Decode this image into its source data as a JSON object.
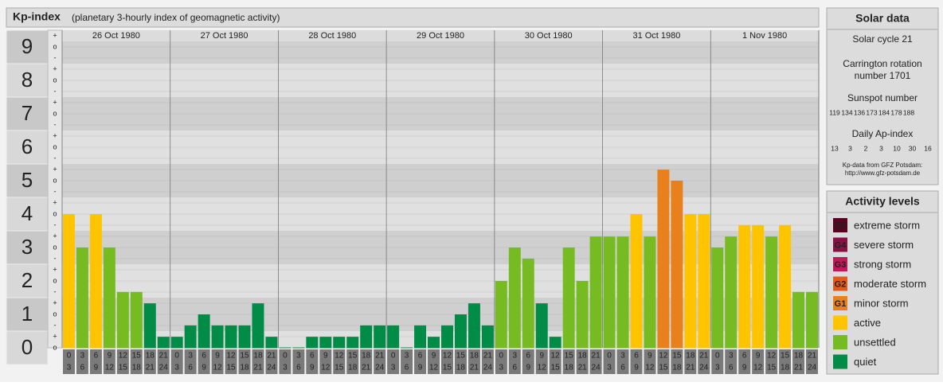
{
  "chart_data": {
    "type": "bar",
    "title": "Kp-index",
    "subtitle": "(planetary 3-hourly index of geomagnetic activity)",
    "ylim": [
      0,
      9.5
    ],
    "yticks": [
      0,
      1,
      2,
      3,
      4,
      5,
      6,
      7,
      8,
      9
    ],
    "minor_labels": [
      "o",
      "+",
      "-"
    ],
    "hour_labels": [
      [
        "0",
        "3"
      ],
      [
        "3",
        "6"
      ],
      [
        "6",
        "9"
      ],
      [
        "9",
        "12"
      ],
      [
        "12",
        "15"
      ],
      [
        "15",
        "18"
      ],
      [
        "18",
        "21"
      ],
      [
        "21",
        "24"
      ]
    ],
    "days": [
      {
        "date": "26 Oct 1980",
        "values": [
          4,
          3,
          4,
          3,
          1.67,
          1.67,
          1.33,
          0.33
        ],
        "colors": [
          "#ffc400",
          "#77bb22",
          "#ffc400",
          "#77bb22",
          "#77bb22",
          "#77bb22",
          "#008c46",
          "#008c46"
        ]
      },
      {
        "date": "27 Oct 1980",
        "values": [
          0.33,
          0.67,
          1,
          0.67,
          0.67,
          0.67,
          1.33,
          0.33
        ],
        "colors": [
          "#008c46",
          "#008c46",
          "#008c46",
          "#008c46",
          "#008c46",
          "#008c46",
          "#008c46",
          "#008c46"
        ]
      },
      {
        "date": "28 Oct 1980",
        "values": [
          0,
          0,
          0.33,
          0.33,
          0.33,
          0.33,
          0.67,
          0.67
        ],
        "colors": [
          "#008c46",
          "#008c46",
          "#008c46",
          "#008c46",
          "#008c46",
          "#008c46",
          "#008c46",
          "#008c46"
        ]
      },
      {
        "date": "29 Oct 1980",
        "values": [
          0.67,
          0,
          0.67,
          0.33,
          0.67,
          1,
          1.33,
          0.67
        ],
        "colors": [
          "#008c46",
          "#008c46",
          "#008c46",
          "#008c46",
          "#008c46",
          "#008c46",
          "#008c46",
          "#008c46"
        ]
      },
      {
        "date": "30 Oct 1980",
        "values": [
          2,
          3,
          2.67,
          1.33,
          0.33,
          3,
          2,
          3.33
        ],
        "colors": [
          "#77bb22",
          "#77bb22",
          "#77bb22",
          "#008c46",
          "#008c46",
          "#77bb22",
          "#77bb22",
          "#77bb22"
        ]
      },
      {
        "date": "31 Oct 1980",
        "values": [
          3.33,
          3.33,
          4,
          3.33,
          5.33,
          5,
          4,
          4
        ],
        "colors": [
          "#77bb22",
          "#77bb22",
          "#ffc400",
          "#77bb22",
          "#e8801c",
          "#e8801c",
          "#ffc400",
          "#ffc400"
        ]
      },
      {
        "date": "1 Nov 1980",
        "values": [
          3,
          3.33,
          3.67,
          3.67,
          3.33,
          3.67,
          1.67,
          1.67
        ],
        "colors": [
          "#77bb22",
          "#77bb22",
          "#ffc400",
          "#ffc400",
          "#77bb22",
          "#ffc400",
          "#77bb22",
          "#77bb22"
        ]
      }
    ]
  },
  "sidebar": {
    "solar": {
      "title": "Solar data",
      "cycle": "Solar cycle 21",
      "carrington": [
        "Carrington rotation",
        "number 1701"
      ],
      "sunspot_title": "Sunspot number",
      "sunspots": [
        119,
        134,
        136,
        173,
        184,
        178,
        188
      ],
      "ap_title": "Daily Ap-index",
      "ap": [
        13,
        3,
        2,
        3,
        10,
        30,
        16
      ],
      "source": [
        "Kp-data from GFZ Potsdam:",
        "http://www.gfz-potsdam.de"
      ]
    },
    "levels": {
      "title": "Activity levels",
      "items": [
        {
          "badge": "G5",
          "label": "extreme storm",
          "color": "#5a0020"
        },
        {
          "badge": "G4",
          "label": "severe storm",
          "color": "#8a1044"
        },
        {
          "badge": "G3",
          "label": "strong storm",
          "color": "#c0185a"
        },
        {
          "badge": "G2",
          "label": "moderate storm",
          "color": "#e05a1c"
        },
        {
          "badge": "G1",
          "label": "minor storm",
          "color": "#e8801c"
        },
        {
          "label": "active",
          "color": "#ffc400"
        },
        {
          "label": "unsettled",
          "color": "#77bb22"
        },
        {
          "label": "quiet",
          "color": "#008c46"
        }
      ]
    }
  }
}
